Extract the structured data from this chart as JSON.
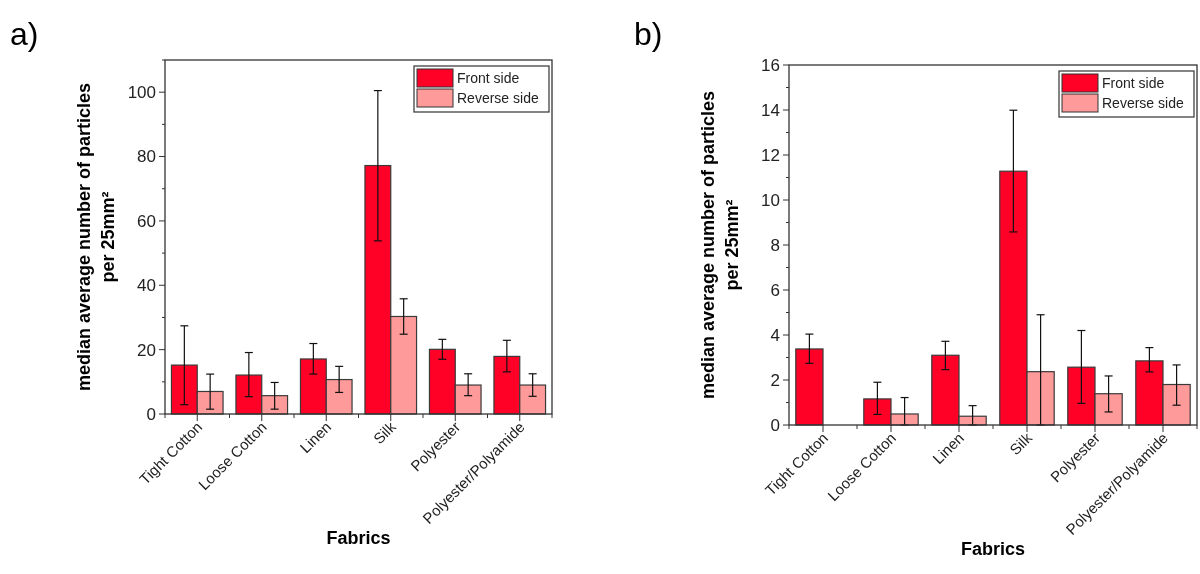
{
  "chart_data": [
    {
      "type": "bar",
      "annotations": [
        "a)"
      ],
      "xlabel": "Fabrics",
      "ylabel": "median average number of particles per 25mm²",
      "categories": [
        "Tight Cotton",
        "Loose Cotton",
        "Linen",
        "Silk",
        "Polyester",
        "Polyester/Polyamide"
      ],
      "ylim": [
        0,
        110
      ],
      "yticks": [
        0,
        {
          "value": 10,
          "label": null
        },
        20,
        {
          "value": 30,
          "label": null
        },
        40,
        {
          "value": 50,
          "label": null
        },
        60,
        {
          "value": 70,
          "label": null
        },
        80,
        {
          "value": 90,
          "label": null
        },
        100,
        {
          "value": 110,
          "label": null
        }
      ],
      "legend": "top right",
      "grid": false,
      "series": [
        {
          "name": "Front side",
          "color": "#ff0027",
          "values": [
            15.2,
            12.1,
            17.1,
            77.2,
            20.1,
            17.9
          ],
          "errors": [
            [
              2.9,
              27.4
            ],
            [
              5.4,
              19.1
            ],
            [
              12.4,
              21.9
            ],
            [
              53.8,
              100.5
            ],
            [
              17.0,
              23.2
            ],
            [
              13.1,
              22.9
            ]
          ]
        },
        {
          "name": "Reverse side",
          "color": "#fe9a9a",
          "values": [
            7.0,
            5.7,
            10.7,
            30.3,
            9.0,
            9.0
          ],
          "errors": [
            [
              1.5,
              12.4
            ],
            [
              1.5,
              9.8
            ],
            [
              6.7,
              14.8
            ],
            [
              24.8,
              35.8
            ],
            [
              5.7,
              12.5
            ],
            [
              5.5,
              12.5
            ]
          ]
        }
      ]
    },
    {
      "type": "bar",
      "annotations": [
        "b)"
      ],
      "xlabel": "Fabrics",
      "ylabel": "median average number of particles per 25mm²",
      "categories": [
        "Tight Cotton",
        "Loose Cotton",
        "Linen",
        "Silk",
        "Polyester",
        "Polyester/Polyamide"
      ],
      "ylim": [
        0,
        16
      ],
      "yticks": [
        0,
        {
          "value": 1,
          "label": null
        },
        2,
        {
          "value": 3,
          "label": null
        },
        4,
        {
          "value": 5,
          "label": null
        },
        6,
        {
          "value": 7,
          "label": null
        },
        8,
        {
          "value": 9,
          "label": null
        },
        10,
        {
          "value": 11,
          "label": null
        },
        12,
        {
          "value": 13,
          "label": null
        },
        14,
        {
          "value": 15,
          "label": null
        },
        16
      ],
      "legend": "top right",
      "grid": false,
      "series": [
        {
          "name": "Front side",
          "color": "#ff0027",
          "values": [
            3.38,
            1.16,
            3.1,
            11.28,
            2.57,
            2.85
          ],
          "errors": [
            [
              2.74,
              4.04
            ],
            [
              0.47,
              1.9
            ],
            [
              2.46,
              3.72
            ],
            [
              8.58,
              13.99
            ],
            [
              0.96,
              4.2
            ],
            [
              2.36,
              3.44
            ]
          ]
        },
        {
          "name": "Reverse side",
          "color": "#fe9a9a",
          "values": [
            0,
            0.49,
            0.39,
            2.37,
            1.39,
            1.8
          ],
          "errors": [
            null,
            [
              0,
              1.22
            ],
            [
              0,
              0.86
            ],
            [
              0,
              4.9
            ],
            [
              0.58,
              2.18
            ],
            [
              0.88,
              2.67
            ]
          ]
        }
      ]
    }
  ]
}
